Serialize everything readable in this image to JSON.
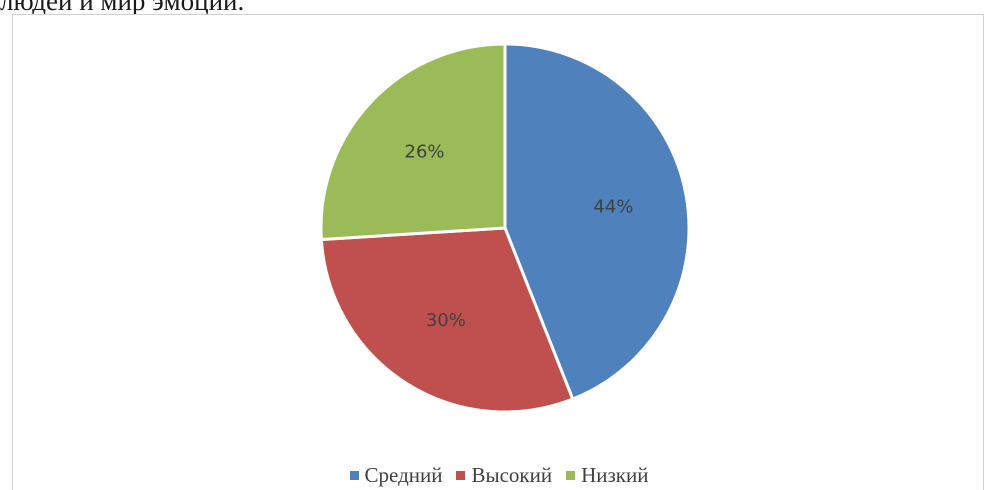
{
  "header": {
    "top_text": "людей и мир эмоций."
  },
  "chart_data": {
    "type": "pie",
    "title": "",
    "categories": [
      "Средний",
      "Высокий",
      "Низкий"
    ],
    "values": [
      44,
      30,
      26
    ],
    "labels": [
      "44%",
      "30%",
      "26%"
    ],
    "colors": [
      "#4f81bd",
      "#c0504d",
      "#9bbb59"
    ],
    "legend_position": "bottom"
  }
}
